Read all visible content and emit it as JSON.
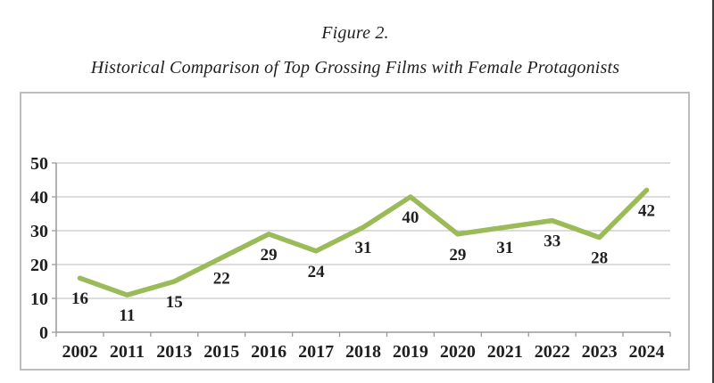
{
  "figure": {
    "label": "Figure 2.",
    "title": "Historical Comparison of Top Grossing Films with Female Protagonists"
  },
  "colors": {
    "background": "#ffffff",
    "line": "#9bbb59",
    "gridline": "#c6c6c6",
    "axis": "#9a9a9a",
    "tick": "#9a9a9a",
    "text": "#1f1f1f",
    "frame_border": "#bdbdbd",
    "page_edge_line": "#3d3d3d"
  },
  "chart_data": {
    "type": "line",
    "title": "Historical Comparison of Top Grossing Films with Female Protagonists",
    "categories": [
      "2002",
      "2011",
      "2013",
      "2015",
      "2016",
      "2017",
      "2018",
      "2019",
      "2020",
      "2021",
      "2022",
      "2023",
      "2024"
    ],
    "values": [
      16,
      11,
      15,
      22,
      29,
      24,
      31,
      40,
      29,
      31,
      33,
      28,
      42
    ],
    "xlabel": "",
    "ylabel": "",
    "ylim": [
      0,
      50
    ],
    "yticks": [
      0,
      10,
      20,
      30,
      40,
      50
    ],
    "grid": true,
    "legend_position": "none",
    "data_labels_position": "below",
    "line_color": "#9bbb59"
  }
}
